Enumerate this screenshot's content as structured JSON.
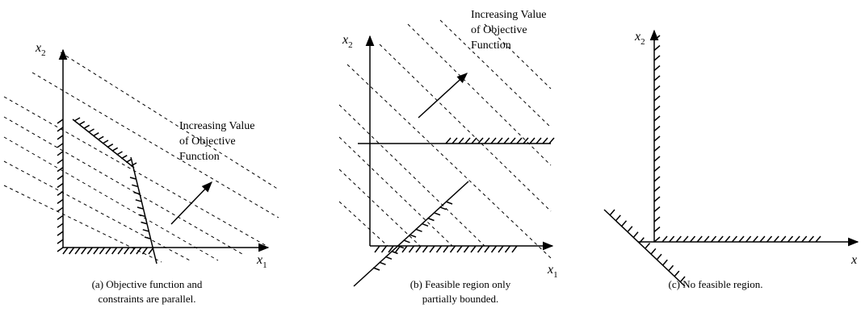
{
  "panels": [
    {
      "y_axis": {
        "base": "x",
        "sub": "2"
      },
      "x_axis": {
        "base": "x",
        "sub": "1"
      },
      "arrow_label": [
        "Increasing Value",
        "of Objective",
        "Function"
      ],
      "caption": [
        "(a)  Objective function and",
        "constraints are parallel."
      ]
    },
    {
      "y_axis": {
        "base": "x",
        "sub": "2"
      },
      "x_axis": {
        "base": "x",
        "sub": "1"
      },
      "arrow_label": [
        "Increasing Value",
        "of Objective",
        "Function"
      ],
      "caption": [
        "(b)  Feasible region only",
        "partially bounded."
      ]
    },
    {
      "y_axis": {
        "base": "x",
        "sub": "2"
      },
      "x_axis": {
        "base": "x"
      },
      "caption": [
        "(c)  No feasible region."
      ]
    }
  ]
}
